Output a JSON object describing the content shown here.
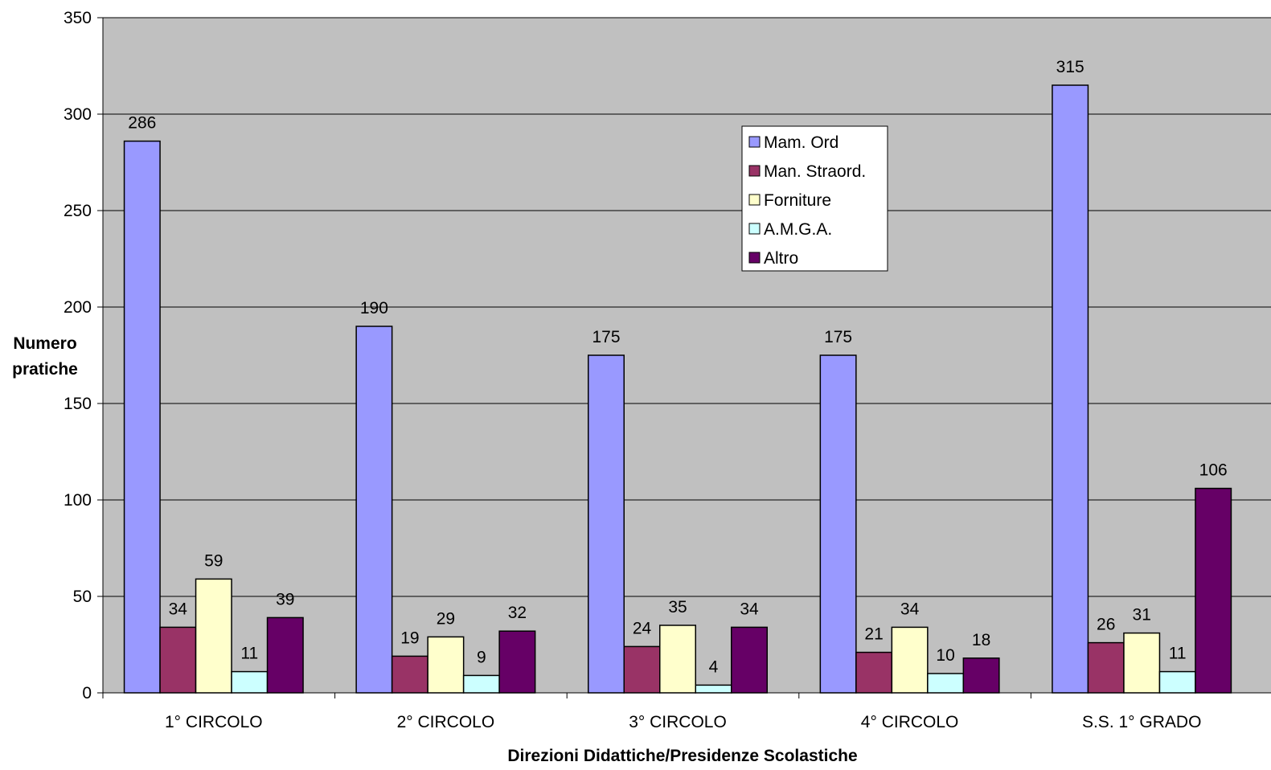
{
  "chart_data": {
    "type": "bar",
    "title": "",
    "xlabel": "Direzioni Didattiche/Presidenze Scolastiche",
    "ylabel_lines": [
      "Numero",
      "pratiche"
    ],
    "ylim": [
      0,
      350
    ],
    "yticks": [
      0,
      50,
      100,
      150,
      200,
      250,
      300,
      350
    ],
    "grid": true,
    "legend_position": "top-center",
    "categories": [
      "1° CIRCOLO",
      "2° CIRCOLO",
      "3° CIRCOLO",
      "4° CIRCOLO",
      "S.S. 1° GRADO"
    ],
    "series": [
      {
        "name": "Mam. Ord",
        "color": "#9999ff",
        "values": [
          286,
          190,
          175,
          175,
          315
        ]
      },
      {
        "name": "Man. Straord.",
        "color": "#993366",
        "values": [
          34,
          19,
          24,
          21,
          26
        ]
      },
      {
        "name": "Forniture",
        "color": "#ffffcc",
        "values": [
          59,
          29,
          35,
          34,
          31
        ]
      },
      {
        "name": "A.M.G.A.",
        "color": "#ccffff",
        "values": [
          11,
          9,
          4,
          10,
          11
        ]
      },
      {
        "name": "Altro",
        "color": "#660066",
        "values": [
          39,
          32,
          34,
          18,
          106
        ]
      }
    ],
    "plot_background": "#c0c0c0"
  }
}
